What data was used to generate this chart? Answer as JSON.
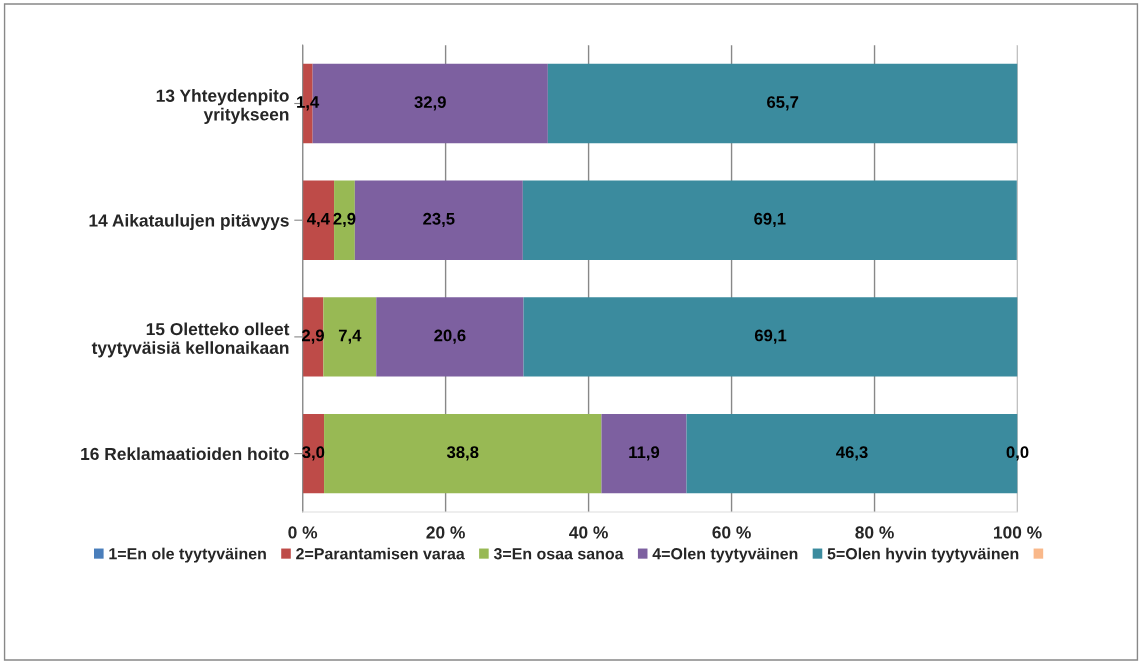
{
  "chart_data": {
    "type": "bar",
    "orientation": "horizontal",
    "stacked": true,
    "categories": [
      "13 Yhteydenpito\nyritykseen",
      "14 Aikataulujen pitävyys",
      "15 Oletteko olleet\ntyytyväisiä kellonaikaan",
      "16 Reklamaatioiden hoito"
    ],
    "series": [
      {
        "name": "1=En ole tyytyväinen",
        "color": "#4a7ebb",
        "values": [
          0,
          0,
          0,
          0
        ],
        "value_labels": [
          null,
          null,
          null,
          null
        ]
      },
      {
        "name": "2=Parantamisen varaa",
        "color": "#be4b48",
        "values": [
          1.4,
          4.4,
          2.9,
          3.0
        ],
        "value_labels": [
          "1,4",
          "4,4",
          "2,9",
          "3,0"
        ]
      },
      {
        "name": "3=En osaa sanoa",
        "color": "#98b954",
        "values": [
          0,
          2.9,
          7.4,
          38.8
        ],
        "value_labels": [
          null,
          "2,9",
          "7,4",
          "38,8"
        ]
      },
      {
        "name": "4=Olen tyytyväinen",
        "color": "#7d60a0",
        "values": [
          32.9,
          23.5,
          20.6,
          11.9
        ],
        "value_labels": [
          "32,9",
          "23,5",
          "20,6",
          "11,9"
        ]
      },
      {
        "name": "5=Olen hyvin tyytyväinen",
        "color": "#3b8b9e",
        "values": [
          65.7,
          69.1,
          69.1,
          46.3
        ],
        "value_labels": [
          "65,7",
          "69,1",
          "69,1",
          "46,3"
        ]
      },
      {
        "color": "#f9b88a",
        "values": [
          null,
          null,
          null,
          0.0
        ],
        "value_labels": [
          null,
          null,
          null,
          "0,0"
        ]
      }
    ],
    "xlim": [
      0,
      100
    ],
    "xticks": [
      {
        "value": 0,
        "label": "0 %"
      },
      {
        "value": 20,
        "label": "20 %"
      },
      {
        "value": 40,
        "label": "40 %"
      },
      {
        "value": 60,
        "label": "60 %"
      },
      {
        "value": 80,
        "label": "80 %"
      },
      {
        "value": 100,
        "label": "100 %"
      }
    ],
    "grid": "x",
    "legend": "bottom"
  }
}
